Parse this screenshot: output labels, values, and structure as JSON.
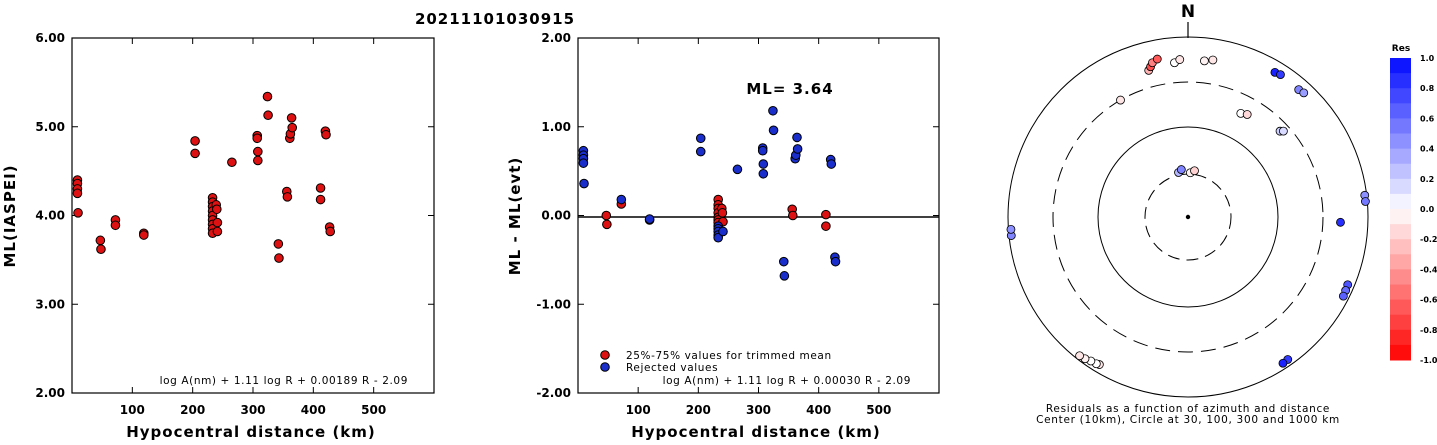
{
  "title": "20211101030915",
  "chart_data": [
    {
      "type": "scatter",
      "ylabel": "ML(IASPEI)",
      "xlabel": "Hypocentral distance (km)",
      "xlim": [
        0,
        600
      ],
      "ylim": [
        2.0,
        6.0
      ],
      "xticks": [
        "100",
        "200",
        "300",
        "400",
        "500"
      ],
      "yticks": [
        "2.00",
        "3.00",
        "4.00",
        "5.00",
        "6.00"
      ],
      "formula": "log A(nm) + 1.11 log R + 0.00189 R - 2.09",
      "series": [
        {
          "color": "#dd1111",
          "points": [
            [
              9,
              4.4
            ],
            [
              9,
              4.36
            ],
            [
              9,
              4.3
            ],
            [
              9,
              4.25
            ],
            [
              10,
              4.03
            ],
            [
              47,
              3.72
            ],
            [
              48,
              3.62
            ],
            [
              72,
              3.95
            ],
            [
              72,
              3.89
            ],
            [
              119,
              3.8
            ],
            [
              119,
              3.78
            ],
            [
              204,
              4.84
            ],
            [
              204,
              4.7
            ],
            [
              233,
              4.2
            ],
            [
              233,
              4.15
            ],
            [
              233,
              4.1
            ],
            [
              233,
              4.05
            ],
            [
              233,
              4.0
            ],
            [
              233,
              3.95
            ],
            [
              233,
              3.9
            ],
            [
              233,
              3.85
            ],
            [
              233,
              3.8
            ],
            [
              239,
              4.12
            ],
            [
              240,
              4.07
            ],
            [
              241,
              3.92
            ],
            [
              241,
              3.82
            ],
            [
              265,
              4.6
            ],
            [
              307,
              4.9
            ],
            [
              307,
              4.87
            ],
            [
              308,
              4.72
            ],
            [
              308,
              4.62
            ],
            [
              324,
              5.34
            ],
            [
              325,
              5.13
            ],
            [
              342,
              3.68
            ],
            [
              343,
              3.52
            ],
            [
              356,
              4.27
            ],
            [
              357,
              4.21
            ],
            [
              361,
              4.87
            ],
            [
              362,
              4.92
            ],
            [
              364,
              5.1
            ],
            [
              365,
              4.99
            ],
            [
              412,
              4.31
            ],
            [
              412,
              4.18
            ],
            [
              420,
              4.95
            ],
            [
              421,
              4.91
            ],
            [
              427,
              3.87
            ],
            [
              428,
              3.82
            ]
          ]
        }
      ]
    },
    {
      "type": "scatter",
      "ylabel": "ML - ML(evt)",
      "xlabel": "Hypocentral distance (km)",
      "xlim": [
        0,
        600
      ],
      "ylim": [
        -2.0,
        2.0
      ],
      "xticks": [
        "100",
        "200",
        "300",
        "400",
        "500"
      ],
      "yticks": [
        "-2.00",
        "-1.00",
        "0.00",
        "1.00",
        "2.00"
      ],
      "ml_label": "ML= 3.64",
      "formula": "log A(nm) + 1.11 log R + 0.00030 R - 2.09",
      "legend": [
        "25%-75% values for trimmed mean",
        "Rejected values"
      ],
      "series": [
        {
          "name": "25%-75% values for trimmed mean",
          "color": "#dd1111",
          "points": [
            [
              47,
              0.0
            ],
            [
              48,
              -0.1
            ],
            [
              72,
              0.13
            ],
            [
              119,
              -0.05
            ],
            [
              233,
              0.18
            ],
            [
              233,
              0.12
            ],
            [
              233,
              0.08
            ],
            [
              233,
              0.03
            ],
            [
              233,
              -0.02
            ],
            [
              233,
              -0.05
            ],
            [
              233,
              -0.08
            ],
            [
              239,
              0.08
            ],
            [
              240,
              0.03
            ],
            [
              241,
              -0.07
            ],
            [
              356,
              0.07
            ],
            [
              357,
              0.0
            ],
            [
              412,
              0.01
            ],
            [
              412,
              -0.12
            ]
          ]
        },
        {
          "name": "Rejected values",
          "color": "#1a2ecc",
          "points": [
            [
              9,
              0.73
            ],
            [
              9,
              0.68
            ],
            [
              9,
              0.64
            ],
            [
              9,
              0.59
            ],
            [
              10,
              0.36
            ],
            [
              72,
              0.18
            ],
            [
              119,
              -0.04
            ],
            [
              204,
              0.87
            ],
            [
              204,
              0.72
            ],
            [
              233,
              -0.12
            ],
            [
              233,
              -0.15
            ],
            [
              233,
              -0.18
            ],
            [
              233,
              -0.22
            ],
            [
              233,
              -0.25
            ],
            [
              241,
              -0.18
            ],
            [
              265,
              0.52
            ],
            [
              307,
              0.76
            ],
            [
              307,
              0.73
            ],
            [
              308,
              0.58
            ],
            [
              308,
              0.47
            ],
            [
              324,
              1.18
            ],
            [
              325,
              0.96
            ],
            [
              342,
              -0.52
            ],
            [
              343,
              -0.68
            ],
            [
              361,
              0.64
            ],
            [
              362,
              0.68
            ],
            [
              364,
              0.88
            ],
            [
              365,
              0.75
            ],
            [
              420,
              0.63
            ],
            [
              421,
              0.58
            ],
            [
              427,
              -0.47
            ],
            [
              428,
              -0.52
            ]
          ]
        }
      ]
    }
  ],
  "polar": {
    "north_label": "N",
    "caption_line1": "Residuals as a function of azimuth and distance",
    "caption_line2": "Center (10km), Circle at 30, 100, 300 and 1000 km",
    "stations": [
      {
        "az": 3,
        "dist": 31,
        "res": -0.05
      },
      {
        "az": 8,
        "dist": 33,
        "res": -0.18
      },
      {
        "az": 348,
        "dist": 32,
        "res": 0.3
      },
      {
        "az": 352,
        "dist": 34,
        "res": 0.5
      },
      {
        "az": 330,
        "dist": 300,
        "res": -0.1
      },
      {
        "az": 345,
        "dist": 470,
        "res": -0.3
      },
      {
        "az": 346,
        "dist": 510,
        "res": -0.7
      },
      {
        "az": 347,
        "dist": 560,
        "res": -0.5
      },
      {
        "az": 349,
        "dist": 600,
        "res": -0.65
      },
      {
        "az": 355,
        "dist": 510,
        "res": 0.0
      },
      {
        "az": 357,
        "dist": 550,
        "res": -0.1
      },
      {
        "az": 6,
        "dist": 540,
        "res": -0.05
      },
      {
        "az": 9,
        "dist": 570,
        "res": -0.1
      },
      {
        "az": 27,
        "dist": 190,
        "res": 0.0
      },
      {
        "az": 30,
        "dist": 200,
        "res": -0.15
      },
      {
        "az": 47,
        "dist": 240,
        "res": 0.2
      },
      {
        "az": 48,
        "dist": 255,
        "res": 0.15
      },
      {
        "az": 31,
        "dist": 740,
        "res": 0.9
      },
      {
        "az": 33,
        "dist": 760,
        "res": 0.8
      },
      {
        "az": 41,
        "dist": 740,
        "res": 0.5
      },
      {
        "az": 43,
        "dist": 760,
        "res": 0.4
      },
      {
        "az": 92,
        "dist": 480,
        "res": 0.85
      },
      {
        "az": 83,
        "dist": 950,
        "res": 0.45
      },
      {
        "az": 85,
        "dist": 950,
        "res": 0.55
      },
      {
        "az": 113,
        "dist": 840,
        "res": 0.7
      },
      {
        "az": 115,
        "dist": 850,
        "res": 0.6
      },
      {
        "az": 117,
        "dist": 860,
        "res": 0.65
      },
      {
        "az": 145,
        "dist": 850,
        "res": 0.8
      },
      {
        "az": 147,
        "dist": 860,
        "res": 0.9
      },
      {
        "az": 211,
        "dist": 810,
        "res": -0.1
      },
      {
        "az": 212,
        "dist": 830,
        "res": 0.0
      },
      {
        "az": 214,
        "dist": 845,
        "res": 0.0
      },
      {
        "az": 216,
        "dist": 880,
        "res": -0.05
      },
      {
        "az": 218,
        "dist": 900,
        "res": -0.1
      },
      {
        "az": 264,
        "dist": 940,
        "res": 0.5
      },
      {
        "az": 266,
        "dist": 935,
        "res": 0.45
      }
    ]
  },
  "colorbar": {
    "title": "Res",
    "labels": [
      "1.0",
      "0.8",
      "0.6",
      "0.4",
      "0.2",
      "0.0",
      "-0.2",
      "-0.4",
      "-0.6",
      "-0.8",
      "-1.0"
    ]
  }
}
